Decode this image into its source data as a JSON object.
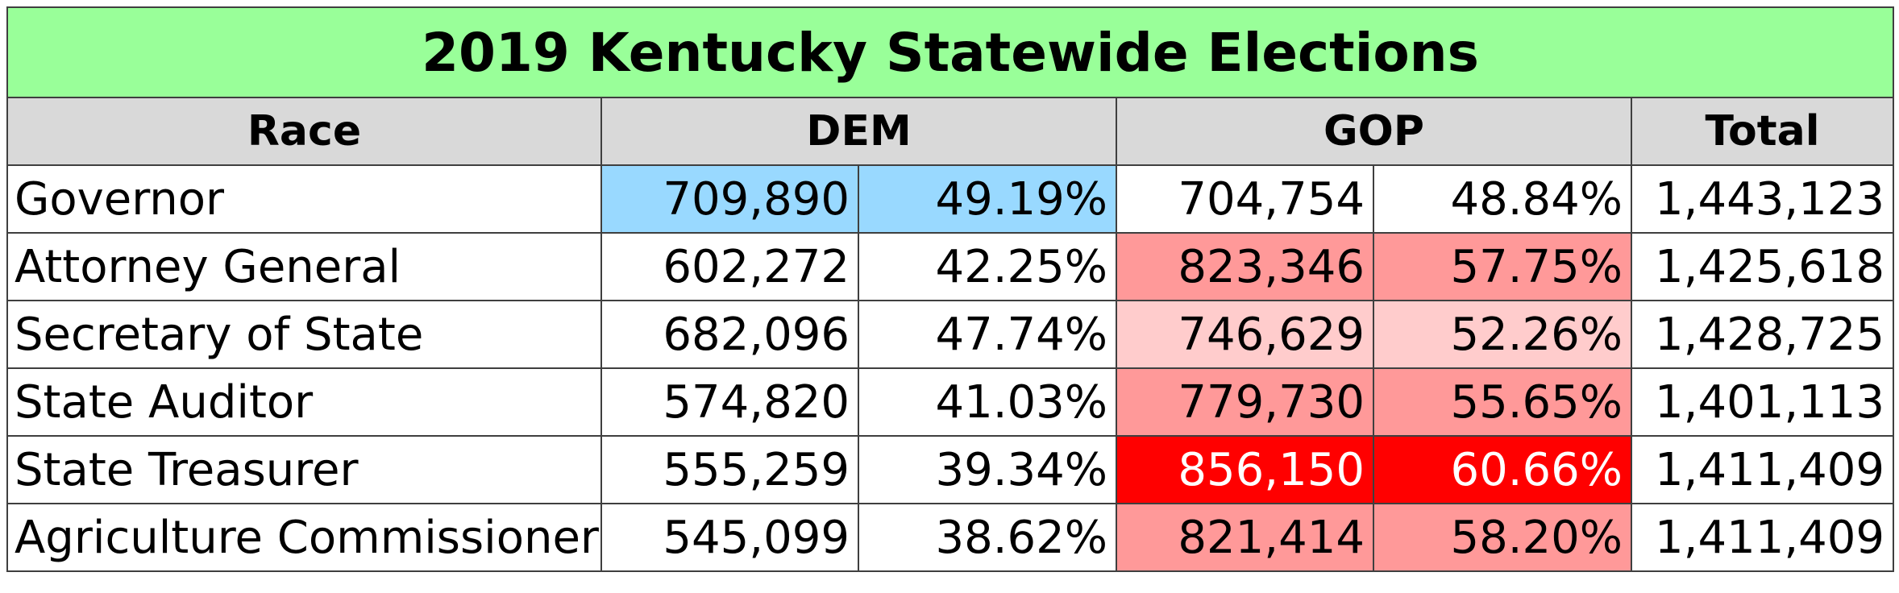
{
  "chart_data": {
    "type": "table",
    "title": "2019 Kentucky Statewide Elections",
    "columns": [
      "Race",
      "DEM",
      "GOP",
      "Total"
    ],
    "rows": [
      {
        "race": "Governor",
        "dem_votes": "709,890",
        "dem_pct": "49.19%",
        "gop_votes": "704,754",
        "gop_pct": "48.84%",
        "total": "1,443,123",
        "dem_fill": "#99d9ff",
        "gop_fill": "#ffffff",
        "gop_text": "#000000"
      },
      {
        "race": "Attorney General",
        "dem_votes": "602,272",
        "dem_pct": "42.25%",
        "gop_votes": "823,346",
        "gop_pct": "57.75%",
        "total": "1,425,618",
        "dem_fill": "#ffffff",
        "gop_fill": "#ff9999",
        "gop_text": "#000000"
      },
      {
        "race": "Secretary of State",
        "dem_votes": "682,096",
        "dem_pct": "47.74%",
        "gop_votes": "746,629",
        "gop_pct": "52.26%",
        "total": "1,428,725",
        "dem_fill": "#ffffff",
        "gop_fill": "#ffcccc",
        "gop_text": "#000000"
      },
      {
        "race": "State Auditor",
        "dem_votes": "574,820",
        "dem_pct": "41.03%",
        "gop_votes": "779,730",
        "gop_pct": "55.65%",
        "total": "1,401,113",
        "dem_fill": "#ffffff",
        "gop_fill": "#ff9999",
        "gop_text": "#000000"
      },
      {
        "race": "State Treasurer",
        "dem_votes": "555,259",
        "dem_pct": "39.34%",
        "gop_votes": "856,150",
        "gop_pct": "60.66%",
        "total": "1,411,409",
        "dem_fill": "#ffffff",
        "gop_fill": "#ff0000",
        "gop_text": "#ffffff"
      },
      {
        "race": "Agriculture Commissioner",
        "dem_votes": "545,099",
        "dem_pct": "38.62%",
        "gop_votes": "821,414",
        "gop_pct": "58.20%",
        "total": "1,411,409",
        "dem_fill": "#ffffff",
        "gop_fill": "#ff9999",
        "gop_text": "#000000"
      }
    ]
  },
  "colors": {
    "title_bg": "#99ff99",
    "header_bg": "#d9d9d9",
    "border": "#3f3f3f"
  }
}
